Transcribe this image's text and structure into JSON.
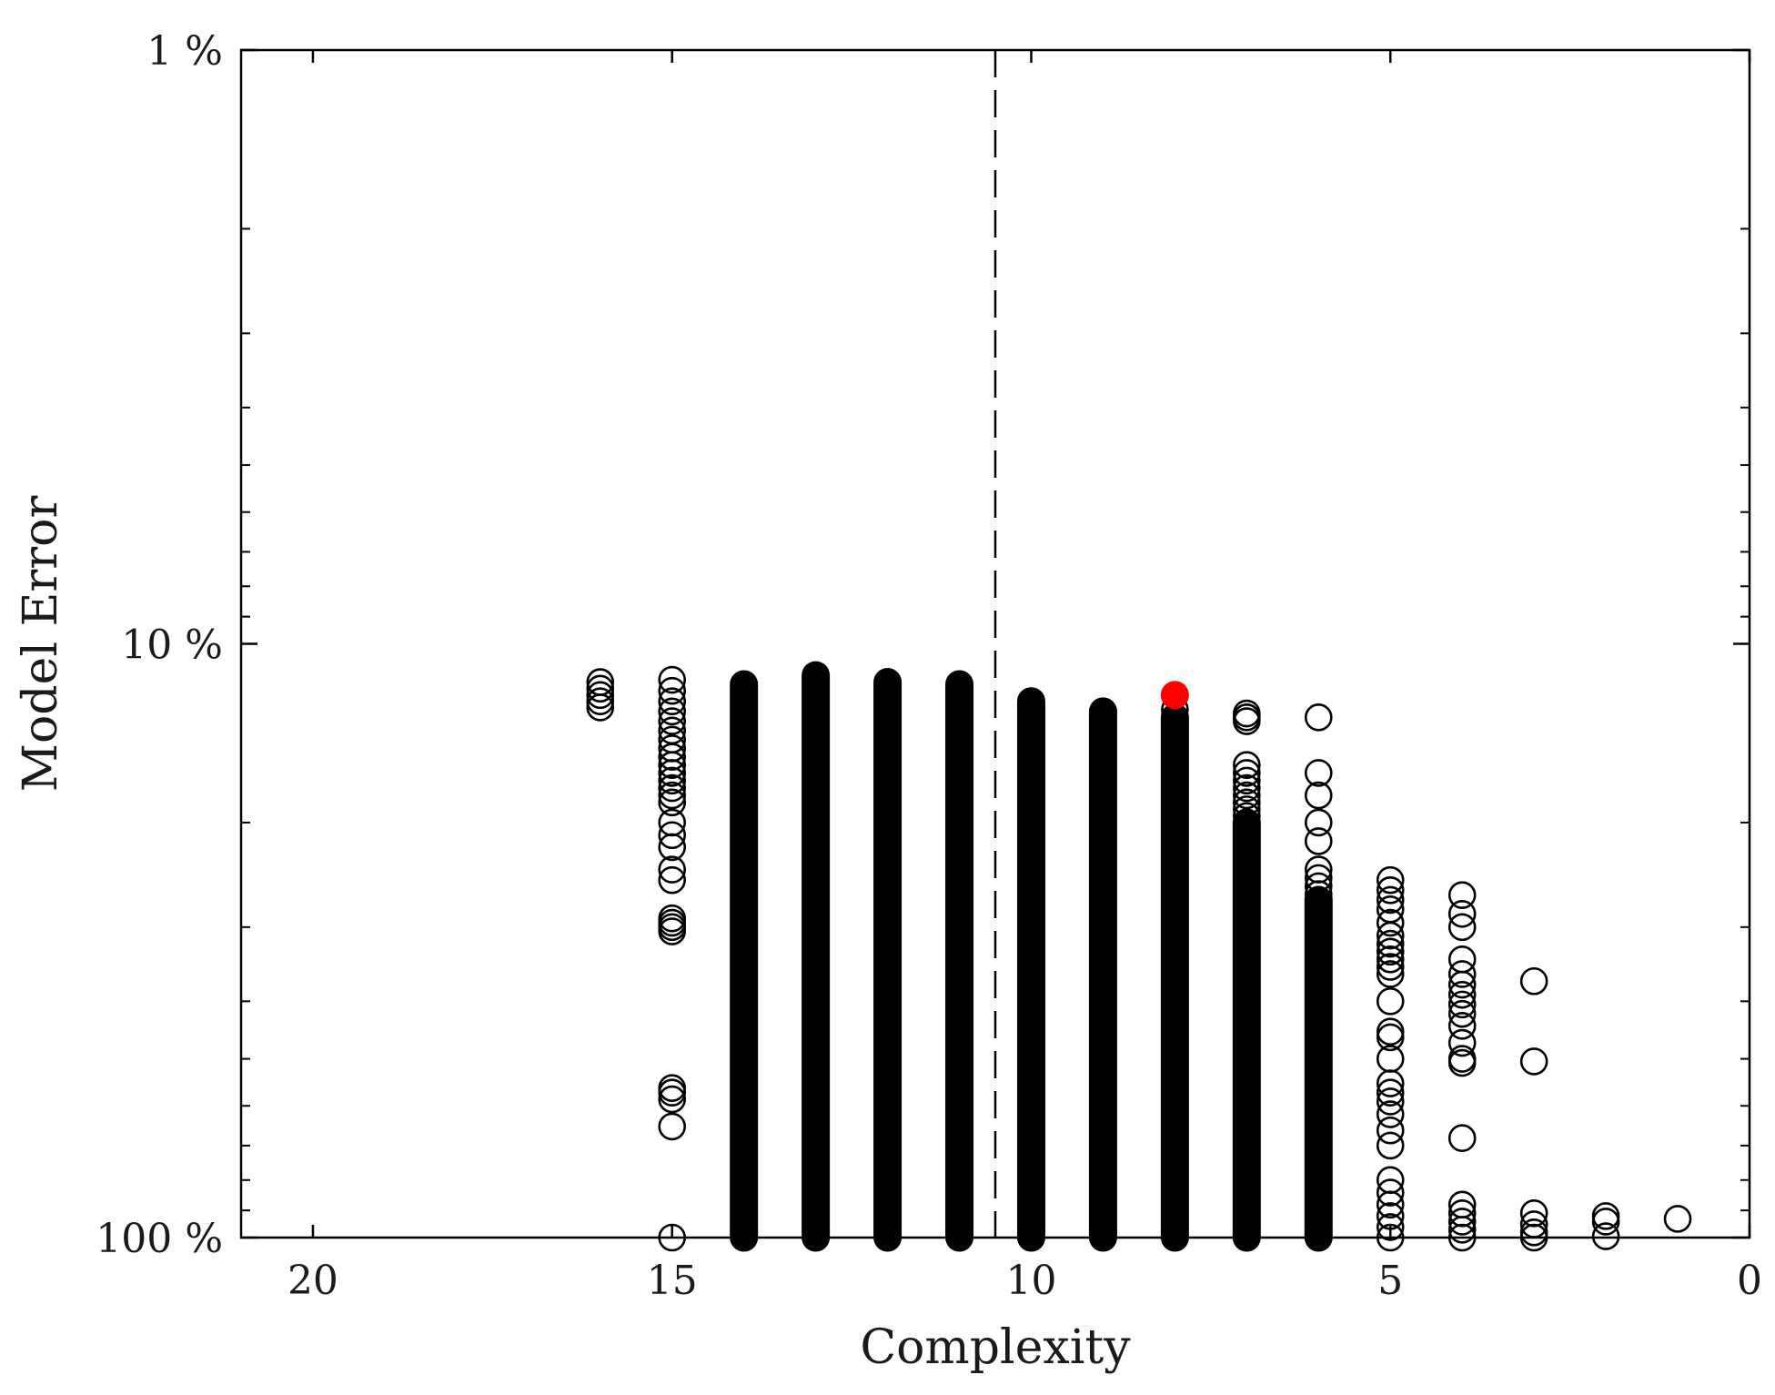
{
  "chart_data": {
    "type": "scatter",
    "title": "",
    "xlabel": "Complexity",
    "ylabel": "Model Error",
    "x_axis": {
      "reversed": true,
      "range": [
        21,
        0
      ],
      "ticks": [
        20,
        15,
        10,
        5,
        0
      ],
      "tick_labels": [
        "20",
        "15",
        "10",
        "5",
        "0"
      ]
    },
    "y_axis": {
      "scale": "log",
      "reversed": true,
      "range": [
        1,
        100
      ],
      "unit": "%",
      "ticks": [
        1,
        10,
        100
      ],
      "tick_labels": [
        "1 %",
        "10 %",
        "100 %"
      ]
    },
    "grid": false,
    "legend": "none",
    "threshold_line": {
      "x": 10.5,
      "style": "dashed"
    },
    "marker_style": "open-circle",
    "marker_color": "#000000",
    "highlight_color": "#ff0000",
    "dense_columns": [
      {
        "x": 14,
        "from": 11.7,
        "to": 100
      },
      {
        "x": 13,
        "from": 11.3,
        "to": 100
      },
      {
        "x": 12,
        "from": 11.6,
        "to": 100
      },
      {
        "x": 11,
        "from": 11.7,
        "to": 100
      },
      {
        "x": 10,
        "from": 12.5,
        "to": 100
      },
      {
        "x": 9,
        "from": 13.0,
        "to": 100
      },
      {
        "x": 8,
        "from": 13.3,
        "to": 100
      },
      {
        "x": 7,
        "from": 20.0,
        "to": 100
      },
      {
        "x": 6,
        "from": 27.0,
        "to": 100
      }
    ],
    "points": [
      {
        "x": 16,
        "y": 11.6
      },
      {
        "x": 16,
        "y": 11.9
      },
      {
        "x": 16,
        "y": 12.2
      },
      {
        "x": 16,
        "y": 12.5
      },
      {
        "x": 16,
        "y": 12.8
      },
      {
        "x": 15,
        "y": 11.5
      },
      {
        "x": 15,
        "y": 12.0
      },
      {
        "x": 15,
        "y": 12.5
      },
      {
        "x": 15,
        "y": 13.0
      },
      {
        "x": 15,
        "y": 13.5
      },
      {
        "x": 15,
        "y": 14.0
      },
      {
        "x": 15,
        "y": 14.5
      },
      {
        "x": 15,
        "y": 15.0
      },
      {
        "x": 15,
        "y": 15.5
      },
      {
        "x": 15,
        "y": 16.0
      },
      {
        "x": 15,
        "y": 16.5
      },
      {
        "x": 15,
        "y": 17.0
      },
      {
        "x": 15,
        "y": 17.5
      },
      {
        "x": 15,
        "y": 18.0
      },
      {
        "x": 15,
        "y": 18.5
      },
      {
        "x": 15,
        "y": 20.0
      },
      {
        "x": 15,
        "y": 21.0
      },
      {
        "x": 15,
        "y": 22.0
      },
      {
        "x": 15,
        "y": 24.0
      },
      {
        "x": 15,
        "y": 25.0
      },
      {
        "x": 15,
        "y": 29.0
      },
      {
        "x": 15,
        "y": 29.5
      },
      {
        "x": 15,
        "y": 30.0
      },
      {
        "x": 15,
        "y": 30.5
      },
      {
        "x": 15,
        "y": 56.0
      },
      {
        "x": 15,
        "y": 57.0
      },
      {
        "x": 15,
        "y": 58.5
      },
      {
        "x": 15,
        "y": 65.0
      },
      {
        "x": 15,
        "y": 100.0
      },
      {
        "x": 8,
        "y": 12.9
      },
      {
        "x": 7,
        "y": 13.1
      },
      {
        "x": 7,
        "y": 13.3
      },
      {
        "x": 7,
        "y": 13.5
      },
      {
        "x": 7,
        "y": 16.0
      },
      {
        "x": 7,
        "y": 16.5
      },
      {
        "x": 7,
        "y": 17.0
      },
      {
        "x": 7,
        "y": 17.5
      },
      {
        "x": 7,
        "y": 18.0
      },
      {
        "x": 7,
        "y": 18.5
      },
      {
        "x": 7,
        "y": 19.0
      },
      {
        "x": 7,
        "y": 19.5
      },
      {
        "x": 6,
        "y": 13.3
      },
      {
        "x": 6,
        "y": 16.5
      },
      {
        "x": 6,
        "y": 18.0
      },
      {
        "x": 6,
        "y": 20.0
      },
      {
        "x": 6,
        "y": 21.5
      },
      {
        "x": 6,
        "y": 24.0
      },
      {
        "x": 6,
        "y": 24.8
      },
      {
        "x": 6,
        "y": 25.6
      },
      {
        "x": 6,
        "y": 26.4
      },
      {
        "x": 5,
        "y": 25.0
      },
      {
        "x": 5,
        "y": 26.0
      },
      {
        "x": 5,
        "y": 27.0
      },
      {
        "x": 5,
        "y": 28.0
      },
      {
        "x": 5,
        "y": 29.5
      },
      {
        "x": 5,
        "y": 31.0
      },
      {
        "x": 5,
        "y": 32.0
      },
      {
        "x": 5,
        "y": 33.0
      },
      {
        "x": 5,
        "y": 34.0
      },
      {
        "x": 5,
        "y": 35.0
      },
      {
        "x": 5,
        "y": 36.0
      },
      {
        "x": 5,
        "y": 40.0
      },
      {
        "x": 5,
        "y": 45.0
      },
      {
        "x": 5,
        "y": 46.0
      },
      {
        "x": 5,
        "y": 50.0
      },
      {
        "x": 5,
        "y": 55.0
      },
      {
        "x": 5,
        "y": 57.0
      },
      {
        "x": 5,
        "y": 59.0
      },
      {
        "x": 5,
        "y": 62.0
      },
      {
        "x": 5,
        "y": 66.0
      },
      {
        "x": 5,
        "y": 70.0
      },
      {
        "x": 5,
        "y": 80.0
      },
      {
        "x": 5,
        "y": 84.0
      },
      {
        "x": 5,
        "y": 88.0
      },
      {
        "x": 5,
        "y": 92.0
      },
      {
        "x": 5,
        "y": 96.0
      },
      {
        "x": 5,
        "y": 100.0
      },
      {
        "x": 4,
        "y": 26.5
      },
      {
        "x": 4,
        "y": 28.5
      },
      {
        "x": 4,
        "y": 30.0
      },
      {
        "x": 4,
        "y": 34.0
      },
      {
        "x": 4,
        "y": 36.0
      },
      {
        "x": 4,
        "y": 37.5
      },
      {
        "x": 4,
        "y": 39.0
      },
      {
        "x": 4,
        "y": 40.5
      },
      {
        "x": 4,
        "y": 42.0
      },
      {
        "x": 4,
        "y": 44.0
      },
      {
        "x": 4,
        "y": 47.0
      },
      {
        "x": 4,
        "y": 50.0
      },
      {
        "x": 4,
        "y": 50.8
      },
      {
        "x": 4,
        "y": 68.0
      },
      {
        "x": 4,
        "y": 88.0
      },
      {
        "x": 4,
        "y": 91.0
      },
      {
        "x": 4,
        "y": 94.0
      },
      {
        "x": 4,
        "y": 97.0
      },
      {
        "x": 4,
        "y": 100.0
      },
      {
        "x": 3,
        "y": 37.0
      },
      {
        "x": 3,
        "y": 50.5
      },
      {
        "x": 3,
        "y": 91.0
      },
      {
        "x": 3,
        "y": 95.0
      },
      {
        "x": 3,
        "y": 98.0
      },
      {
        "x": 3,
        "y": 100.0
      },
      {
        "x": 2,
        "y": 92.0
      },
      {
        "x": 2,
        "y": 94.0
      },
      {
        "x": 2,
        "y": 99.5
      },
      {
        "x": 1,
        "y": 93.0
      }
    ],
    "highlight": {
      "x": 8,
      "y": 12.2
    }
  }
}
